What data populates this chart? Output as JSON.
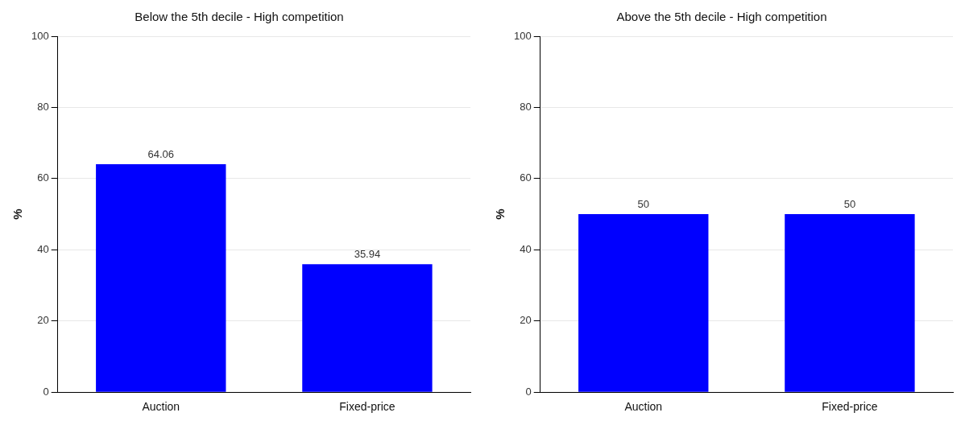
{
  "chart_data": [
    {
      "type": "bar",
      "title": "Below the 5th decile - High competition",
      "ylabel": "%",
      "categories": [
        "Auction",
        "Fixed-price"
      ],
      "values": [
        64.06,
        35.94
      ],
      "color": "#0000ff",
      "ylim": [
        0,
        100
      ],
      "yticks": [
        0,
        20,
        40,
        60,
        80,
        100
      ],
      "grid": "y",
      "data_labels": true,
      "legend": false
    },
    {
      "type": "bar",
      "title": "Above the 5th decile - High competition",
      "ylabel": "%",
      "categories": [
        "Auction",
        "Fixed-price"
      ],
      "values": [
        50,
        50
      ],
      "color": "#0000ff",
      "ylim": [
        0,
        100
      ],
      "yticks": [
        0,
        20,
        40,
        60,
        80,
        100
      ],
      "grid": "y",
      "data_labels": true,
      "legend": false
    }
  ]
}
